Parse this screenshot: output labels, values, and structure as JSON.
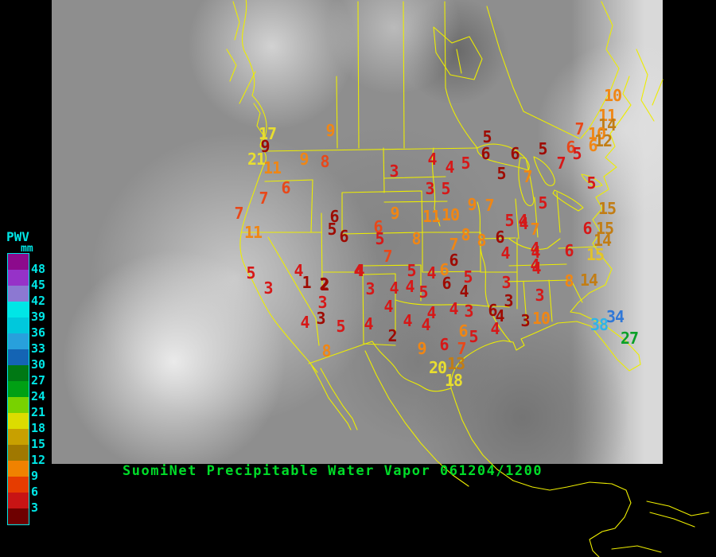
{
  "caption": {
    "text": "SuomiNet Precipitable Water Vapor 061204/1200",
    "color": "#00DC28"
  },
  "legend": {
    "title": "PWV",
    "unit": "mm",
    "text_color": "#00E6E6",
    "entries": [
      {
        "label": "48",
        "color": "#8C0A8C"
      },
      {
        "label": "45",
        "color": "#9632C8"
      },
      {
        "label": "42",
        "color": "#8C78D2"
      },
      {
        "label": "39",
        "color": "#00E6E6"
      },
      {
        "label": "36",
        "color": "#00C8DC"
      },
      {
        "label": "33",
        "color": "#28A0DC"
      },
      {
        "label": "30",
        "color": "#1464B4"
      },
      {
        "label": "27",
        "color": "#007814"
      },
      {
        "label": "24",
        "color": "#00A014"
      },
      {
        "label": "21",
        "color": "#78D200"
      },
      {
        "label": "18",
        "color": "#DCDC00"
      },
      {
        "label": "15",
        "color": "#C8A000"
      },
      {
        "label": "12",
        "color": "#A07800"
      },
      {
        "label": "9",
        "color": "#F08200"
      },
      {
        "label": "6",
        "color": "#E63C00"
      },
      {
        "label": "3",
        "color": "#C81414"
      },
      {
        "label": "",
        "color": "#6E0000"
      }
    ]
  },
  "stations": {
    "value_colors": {
      "dr": "#9E0A00",
      "r": "#D61818",
      "or": "#E8481A",
      "o": "#F08614",
      "do": "#C27D14",
      "m": "#E2C22A",
      "y": "#E8DE30",
      "g": "#0AA028",
      "c": "#30B4E8",
      "b": "#3078D8"
    },
    "points": [
      [
        "17",
        336,
        168,
        "y"
      ],
      [
        "9",
        333,
        184,
        "dr"
      ],
      [
        "21",
        322,
        200,
        "y"
      ],
      [
        "11",
        342,
        211,
        "o"
      ],
      [
        "9",
        382,
        200,
        "o"
      ],
      [
        "9",
        415,
        164,
        "o"
      ],
      [
        "8",
        408,
        203,
        "or"
      ],
      [
        "6",
        359,
        236,
        "or"
      ],
      [
        "7",
        331,
        249,
        "or"
      ],
      [
        "7",
        300,
        268,
        "or"
      ],
      [
        "11",
        318,
        292,
        "o"
      ],
      [
        "5",
        315,
        343,
        "r"
      ],
      [
        "3",
        337,
        362,
        "r"
      ],
      [
        "6",
        420,
        272,
        "dr"
      ],
      [
        "5",
        417,
        288,
        "dr"
      ],
      [
        "6",
        432,
        297,
        "dr"
      ],
      [
        "9",
        496,
        268,
        "o"
      ],
      [
        "6",
        475,
        285,
        "or"
      ],
      [
        "5",
        477,
        300,
        "r"
      ],
      [
        "8",
        523,
        300,
        "o"
      ],
      [
        "7",
        487,
        322,
        "or"
      ],
      [
        "2",
        407,
        357,
        "dr"
      ],
      [
        "4",
        450,
        340,
        "r"
      ],
      [
        "4",
        375,
        340,
        "r"
      ],
      [
        "1",
        385,
        355,
        "dr"
      ],
      [
        "2",
        408,
        358,
        "dr"
      ],
      [
        "3",
        405,
        380,
        "r"
      ],
      [
        "3",
        403,
        400,
        "dr"
      ],
      [
        "4",
        383,
        405,
        "r"
      ],
      [
        "5",
        428,
        410,
        "r"
      ],
      [
        "4",
        452,
        340,
        "r"
      ],
      [
        "8",
        410,
        441,
        "o"
      ],
      [
        "3",
        465,
        363,
        "r"
      ],
      [
        "5",
        612,
        172,
        "dr"
      ],
      [
        "4",
        543,
        200,
        "r"
      ],
      [
        "4",
        565,
        210,
        "r"
      ],
      [
        "5",
        585,
        205,
        "r"
      ],
      [
        "6",
        610,
        193,
        "dr"
      ],
      [
        "6",
        647,
        193,
        "dr"
      ],
      [
        "5",
        630,
        218,
        "dr"
      ],
      [
        "7",
        663,
        222,
        "o"
      ],
      [
        "3",
        495,
        215,
        "r"
      ],
      [
        "3",
        540,
        237,
        "r"
      ],
      [
        "5",
        560,
        237,
        "r"
      ],
      [
        "9",
        593,
        257,
        "o"
      ],
      [
        "7",
        615,
        258,
        "o"
      ],
      [
        "11",
        542,
        272,
        "o"
      ],
      [
        "10",
        566,
        270,
        "o"
      ],
      [
        "5",
        640,
        277,
        "r"
      ],
      [
        "4",
        658,
        281,
        "r"
      ],
      [
        "8",
        585,
        295,
        "o"
      ],
      [
        "8",
        605,
        302,
        "o"
      ],
      [
        "6",
        628,
        298,
        "dr"
      ],
      [
        "7",
        570,
        307,
        "o"
      ],
      [
        "6",
        570,
        327,
        "dr"
      ],
      [
        "6",
        558,
        339,
        "o"
      ],
      [
        "4",
        635,
        318,
        "r"
      ],
      [
        "4",
        673,
        317,
        "r"
      ],
      [
        "5",
        588,
        348,
        "r"
      ],
      [
        "4",
        583,
        366,
        "dr"
      ],
      [
        "6",
        561,
        356,
        "dr"
      ],
      [
        "3",
        636,
        355,
        "r"
      ],
      [
        "4",
        674,
        337,
        "r"
      ],
      [
        "3",
        678,
        371,
        "r"
      ],
      [
        "3",
        639,
        378,
        "dr"
      ],
      [
        "10",
        770,
        120,
        "o"
      ],
      [
        "11",
        763,
        145,
        "o"
      ],
      [
        "14",
        763,
        157,
        "do"
      ],
      [
        "10",
        750,
        168,
        "o"
      ],
      [
        "12",
        758,
        177,
        "do"
      ],
      [
        "7",
        728,
        162,
        "or"
      ],
      [
        "6",
        717,
        185,
        "or"
      ],
      [
        "6",
        745,
        183,
        "o"
      ],
      [
        "5",
        682,
        187,
        "dr"
      ],
      [
        "5",
        725,
        193,
        "r"
      ],
      [
        "7",
        705,
        205,
        "r"
      ],
      [
        "5",
        743,
        230,
        "r"
      ],
      [
        "5",
        682,
        255,
        "r"
      ],
      [
        "15",
        763,
        262,
        "do"
      ],
      [
        "4",
        657,
        277,
        "r"
      ],
      [
        "7",
        672,
        288,
        "o"
      ],
      [
        "6",
        738,
        287,
        "r"
      ],
      [
        "15",
        760,
        287,
        "do"
      ],
      [
        "14",
        757,
        302,
        "do"
      ],
      [
        "4",
        672,
        312,
        "r"
      ],
      [
        "6",
        715,
        315,
        "r"
      ],
      [
        "15",
        748,
        320,
        "m"
      ],
      [
        "4",
        672,
        333,
        "r"
      ],
      [
        "8",
        715,
        353,
        "o"
      ],
      [
        "14",
        740,
        352,
        "do"
      ],
      [
        "34",
        773,
        398,
        "b"
      ],
      [
        "38",
        753,
        408,
        "c"
      ],
      [
        "27",
        791,
        425,
        "g"
      ],
      [
        "10",
        680,
        400,
        "o"
      ],
      [
        "3",
        660,
        403,
        "dr"
      ],
      [
        "4",
        570,
        388,
        "r"
      ],
      [
        "3",
        589,
        391,
        "r"
      ],
      [
        "6",
        619,
        390,
        "dr"
      ],
      [
        "4",
        628,
        397,
        "dr"
      ],
      [
        "4",
        622,
        413,
        "r"
      ],
      [
        "6",
        582,
        416,
        "o"
      ],
      [
        "5",
        595,
        423,
        "r"
      ],
      [
        "7",
        580,
        438,
        "or"
      ],
      [
        "13",
        573,
        457,
        "do"
      ],
      [
        "20",
        550,
        462,
        "y"
      ],
      [
        "18",
        570,
        478,
        "y"
      ],
      [
        "9",
        530,
        438,
        "o"
      ],
      [
        "6",
        558,
        433,
        "r"
      ],
      [
        "5",
        517,
        340,
        "r"
      ],
      [
        "4",
        542,
        343,
        "r"
      ],
      [
        "4",
        495,
        362,
        "r"
      ],
      [
        "4",
        515,
        360,
        "r"
      ],
      [
        "5",
        532,
        367,
        "r"
      ],
      [
        "4",
        488,
        385,
        "r"
      ],
      [
        "4",
        463,
        407,
        "r"
      ],
      [
        "4",
        512,
        403,
        "r"
      ],
      [
        "4",
        542,
        393,
        "r"
      ],
      [
        "4",
        535,
        408,
        "r"
      ],
      [
        "2",
        493,
        422,
        "dr"
      ]
    ]
  }
}
